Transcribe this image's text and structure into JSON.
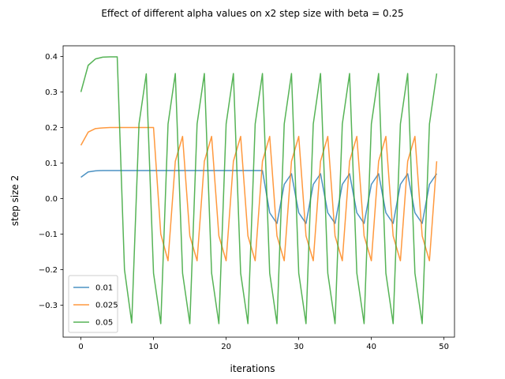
{
  "chart_data": {
    "type": "line",
    "title": "Effect of different alpha values on x2 step size with beta = 0.25",
    "xlabel": "iterations",
    "ylabel": "step size 2",
    "xlim": [
      -2.45,
      51.45
    ],
    "ylim": [
      -0.39,
      0.43
    ],
    "xticks": [
      0,
      10,
      20,
      30,
      40,
      50
    ],
    "xtick_labels": [
      "0",
      "10",
      "20",
      "30",
      "40",
      "50"
    ],
    "yticks": [
      -0.3,
      -0.2,
      -0.1,
      0.0,
      0.1,
      0.2,
      0.3,
      0.4
    ],
    "ytick_labels": [
      "−0.3",
      "−0.2",
      "−0.1",
      "0.0",
      "0.1",
      "0.2",
      "0.3",
      "0.4"
    ],
    "grid": false,
    "legend_position": "lower-left",
    "x": [
      0,
      1,
      2,
      3,
      4,
      5,
      6,
      7,
      8,
      9,
      10,
      11,
      12,
      13,
      14,
      15,
      16,
      17,
      18,
      19,
      20,
      21,
      22,
      23,
      24,
      25,
      26,
      27,
      28,
      29,
      30,
      31,
      32,
      33,
      34,
      35,
      36,
      37,
      38,
      39,
      40,
      41,
      42,
      43,
      44,
      45,
      46,
      47,
      48,
      49
    ],
    "series": [
      {
        "name": "0.01",
        "color": "#1f77b4",
        "values": [
          0.06,
          0.075,
          0.078,
          0.079,
          0.079,
          0.079,
          0.079,
          0.079,
          0.079,
          0.079,
          0.079,
          0.079,
          0.079,
          0.079,
          0.079,
          0.079,
          0.079,
          0.079,
          0.079,
          0.079,
          0.079,
          0.079,
          0.079,
          0.079,
          0.079,
          0.079,
          -0.04,
          -0.07,
          0.04,
          0.07,
          -0.04,
          -0.07,
          0.04,
          0.07,
          -0.04,
          -0.07,
          0.04,
          0.07,
          -0.04,
          -0.07,
          0.04,
          0.07,
          -0.04,
          -0.07,
          0.04,
          0.07,
          -0.04,
          -0.07,
          0.04,
          0.07
        ]
      },
      {
        "name": "0.025",
        "color": "#ff7f0e",
        "values": [
          0.15,
          0.187,
          0.197,
          0.199,
          0.2,
          0.2,
          0.2,
          0.2,
          0.2,
          0.2,
          0.2,
          -0.1,
          -0.175,
          0.105,
          0.175,
          -0.105,
          -0.175,
          0.105,
          0.175,
          -0.105,
          -0.175,
          0.105,
          0.175,
          -0.105,
          -0.175,
          0.105,
          0.175,
          -0.105,
          -0.175,
          0.105,
          0.175,
          -0.105,
          -0.175,
          0.105,
          0.175,
          -0.105,
          -0.175,
          0.105,
          0.175,
          -0.105,
          -0.175,
          0.105,
          0.175,
          -0.105,
          -0.175,
          0.105,
          0.175,
          -0.105,
          -0.175,
          0.105
        ]
      },
      {
        "name": "0.05",
        "color": "#2ca02c",
        "values": [
          0.3,
          0.375,
          0.393,
          0.398,
          0.399,
          0.399,
          -0.2,
          -0.35,
          0.21,
          0.351,
          -0.21,
          -0.352,
          0.21,
          0.352,
          -0.21,
          -0.352,
          0.21,
          0.352,
          -0.21,
          -0.352,
          0.21,
          0.352,
          -0.21,
          -0.352,
          0.21,
          0.352,
          -0.21,
          -0.352,
          0.21,
          0.352,
          -0.21,
          -0.352,
          0.21,
          0.352,
          -0.21,
          -0.352,
          0.21,
          0.352,
          -0.21,
          -0.352,
          0.21,
          0.352,
          -0.21,
          -0.352,
          0.21,
          0.352,
          -0.21,
          -0.352,
          0.21,
          0.352
        ]
      }
    ]
  }
}
